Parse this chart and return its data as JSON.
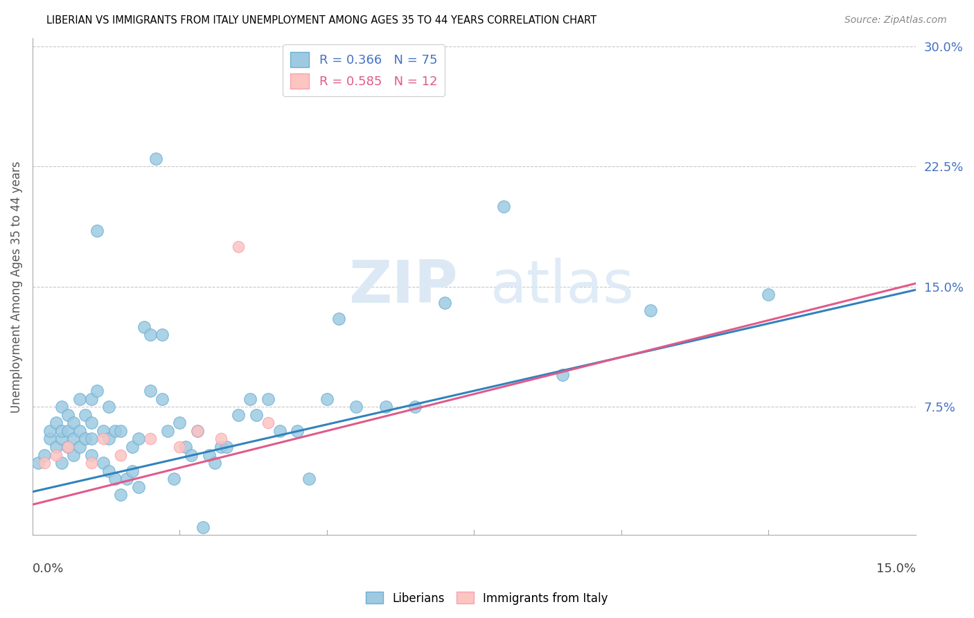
{
  "title": "LIBERIAN VS IMMIGRANTS FROM ITALY UNEMPLOYMENT AMONG AGES 35 TO 44 YEARS CORRELATION CHART",
  "source": "Source: ZipAtlas.com",
  "ylabel": "Unemployment Among Ages 35 to 44 years",
  "legend_liberian_r": "0.366",
  "legend_liberian_n": "75",
  "legend_italy_r": "0.585",
  "legend_italy_n": "12",
  "legend_labels": [
    "Liberians",
    "Immigrants from Italy"
  ],
  "blue_scatter_color": "#9ecae1",
  "blue_edge_color": "#6baed6",
  "pink_scatter_color": "#fcc5c0",
  "pink_edge_color": "#fa9fb5",
  "trend_blue": "#3182bd",
  "trend_pink": "#e05a8a",
  "xmin": 0.0,
  "xmax": 0.15,
  "ymin": -0.005,
  "ymax": 0.305,
  "grid_yticks": [
    0.075,
    0.15,
    0.225,
    0.3
  ],
  "right_yticklabels": [
    "7.5%",
    "15.0%",
    "22.5%",
    "30.0%"
  ],
  "liberian_x": [
    0.001,
    0.002,
    0.003,
    0.003,
    0.004,
    0.004,
    0.005,
    0.005,
    0.005,
    0.005,
    0.006,
    0.006,
    0.006,
    0.007,
    0.007,
    0.007,
    0.008,
    0.008,
    0.008,
    0.009,
    0.009,
    0.01,
    0.01,
    0.01,
    0.01,
    0.011,
    0.011,
    0.012,
    0.012,
    0.013,
    0.013,
    0.013,
    0.014,
    0.014,
    0.015,
    0.015,
    0.016,
    0.017,
    0.017,
    0.018,
    0.018,
    0.019,
    0.02,
    0.02,
    0.021,
    0.022,
    0.022,
    0.023,
    0.024,
    0.025,
    0.026,
    0.027,
    0.028,
    0.029,
    0.03,
    0.031,
    0.032,
    0.033,
    0.035,
    0.037,
    0.038,
    0.04,
    0.042,
    0.045,
    0.047,
    0.05,
    0.052,
    0.055,
    0.06,
    0.065,
    0.07,
    0.08,
    0.09,
    0.105,
    0.125
  ],
  "liberian_y": [
    0.04,
    0.045,
    0.055,
    0.06,
    0.05,
    0.065,
    0.04,
    0.055,
    0.06,
    0.075,
    0.05,
    0.06,
    0.07,
    0.045,
    0.055,
    0.065,
    0.05,
    0.06,
    0.08,
    0.055,
    0.07,
    0.045,
    0.055,
    0.065,
    0.08,
    0.185,
    0.085,
    0.04,
    0.06,
    0.035,
    0.055,
    0.075,
    0.03,
    0.06,
    0.02,
    0.06,
    0.03,
    0.035,
    0.05,
    0.025,
    0.055,
    0.125,
    0.085,
    0.12,
    0.23,
    0.08,
    0.12,
    0.06,
    0.03,
    0.065,
    0.05,
    0.045,
    0.06,
    0.0,
    0.045,
    0.04,
    0.05,
    0.05,
    0.07,
    0.08,
    0.07,
    0.08,
    0.06,
    0.06,
    0.03,
    0.08,
    0.13,
    0.075,
    0.075,
    0.075,
    0.14,
    0.2,
    0.095,
    0.135,
    0.145
  ],
  "italy_x": [
    0.002,
    0.004,
    0.006,
    0.01,
    0.012,
    0.015,
    0.02,
    0.025,
    0.028,
    0.032,
    0.035,
    0.04
  ],
  "italy_y": [
    0.04,
    0.045,
    0.05,
    0.04,
    0.055,
    0.045,
    0.055,
    0.05,
    0.06,
    0.055,
    0.175,
    0.065
  ],
  "trend_blue_x0": 0.0,
  "trend_blue_y0": 0.022,
  "trend_blue_x1": 0.15,
  "trend_blue_y1": 0.148,
  "trend_pink_x0": 0.0,
  "trend_pink_y0": 0.014,
  "trend_pink_x1": 0.15,
  "trend_pink_y1": 0.152
}
